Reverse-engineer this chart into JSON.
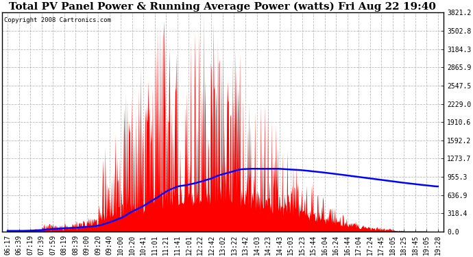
{
  "title": "Total PV Panel Power & Running Average Power (watts) Fri Aug 22 19:40",
  "copyright": "Copyright 2008 Cartronics.com",
  "ylabel_values": [
    0.0,
    318.4,
    636.9,
    955.3,
    1273.7,
    1592.2,
    1910.6,
    2229.0,
    2547.5,
    2865.9,
    3184.3,
    3502.8,
    3821.2
  ],
  "ymax": 3821.2,
  "ymin": 0.0,
  "x_tick_labels": [
    "06:17",
    "06:39",
    "07:19",
    "07:39",
    "07:59",
    "08:19",
    "08:39",
    "09:00",
    "09:20",
    "09:40",
    "10:00",
    "10:20",
    "10:41",
    "11:01",
    "11:21",
    "11:41",
    "12:01",
    "12:22",
    "12:42",
    "13:02",
    "13:22",
    "13:42",
    "14:03",
    "14:23",
    "14:43",
    "15:03",
    "15:23",
    "15:44",
    "16:04",
    "16:24",
    "16:44",
    "17:04",
    "17:24",
    "17:45",
    "18:05",
    "18:25",
    "18:45",
    "19:05",
    "19:28"
  ],
  "background_color": "#ffffff",
  "bar_color": "#ff0000",
  "line_color": "#0000ff",
  "grid_color": "#bbbbbb",
  "title_fontsize": 11,
  "copyright_fontsize": 6.5,
  "tick_fontsize": 7,
  "n_points": 39,
  "figsize": [
    6.9,
    3.75
  ],
  "dpi": 100
}
